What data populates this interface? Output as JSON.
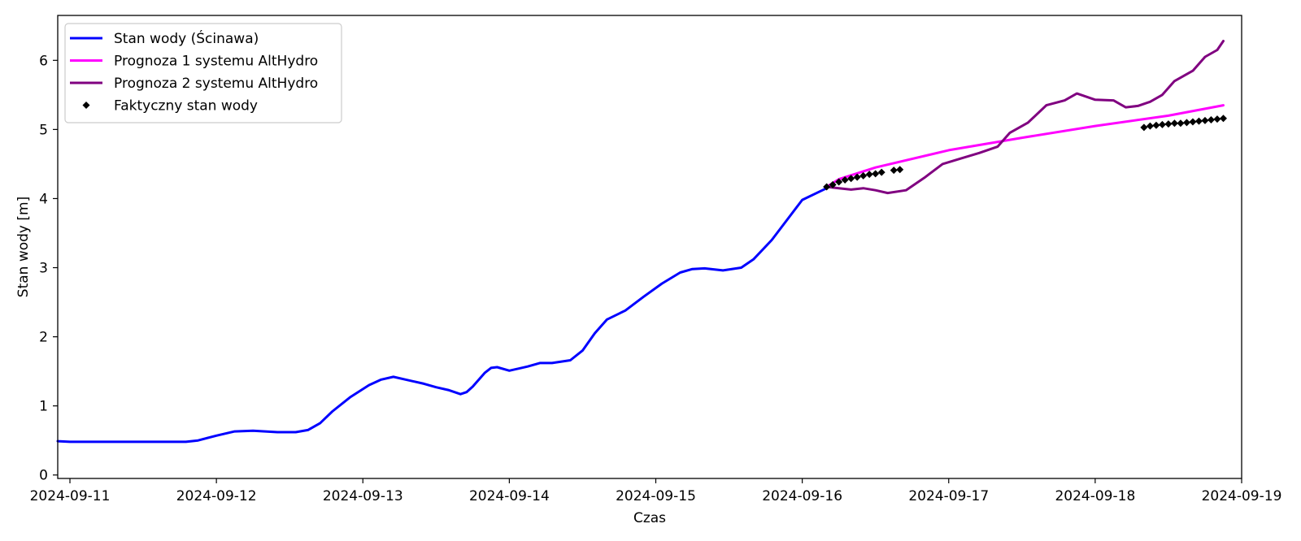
{
  "chart_data": {
    "type": "line",
    "xlabel": "Czas",
    "ylabel": "Stan wody [m]",
    "xlim": [
      "2024-09-10 22:00",
      "2024-09-19 00:00"
    ],
    "ylim": [
      -0.05,
      6.65
    ],
    "x_ticks": [
      "2024-09-11",
      "2024-09-12",
      "2024-09-13",
      "2024-09-14",
      "2024-09-15",
      "2024-09-16",
      "2024-09-17",
      "2024-09-18",
      "2024-09-19"
    ],
    "y_ticks": [
      "0",
      "1",
      "2",
      "3",
      "4",
      "5",
      "6"
    ],
    "grid": false,
    "legend_position": "top-left",
    "series": [
      {
        "name": "Stan wody (Ścinawa)",
        "color": "#0000ff",
        "style": "line",
        "points": [
          [
            "2024-09-10 22:00",
            0.49
          ],
          [
            "2024-09-11 00:00",
            0.48
          ],
          [
            "2024-09-11 03:00",
            0.48
          ],
          [
            "2024-09-11 12:00",
            0.48
          ],
          [
            "2024-09-11 19:00",
            0.48
          ],
          [
            "2024-09-11 21:00",
            0.5
          ],
          [
            "2024-09-12 00:00",
            0.57
          ],
          [
            "2024-09-12 03:00",
            0.63
          ],
          [
            "2024-09-12 06:00",
            0.64
          ],
          [
            "2024-09-12 10:00",
            0.62
          ],
          [
            "2024-09-12 13:00",
            0.62
          ],
          [
            "2024-09-12 15:00",
            0.65
          ],
          [
            "2024-09-12 17:00",
            0.75
          ],
          [
            "2024-09-12 19:00",
            0.92
          ],
          [
            "2024-09-12 22:00",
            1.13
          ],
          [
            "2024-09-13 01:00",
            1.3
          ],
          [
            "2024-09-13 03:00",
            1.38
          ],
          [
            "2024-09-13 05:00",
            1.42
          ],
          [
            "2024-09-13 07:00",
            1.38
          ],
          [
            "2024-09-13 10:00",
            1.32
          ],
          [
            "2024-09-13 12:00",
            1.27
          ],
          [
            "2024-09-13 14:00",
            1.23
          ],
          [
            "2024-09-13 16:00",
            1.17
          ],
          [
            "2024-09-13 17:00",
            1.2
          ],
          [
            "2024-09-13 18:00",
            1.28
          ],
          [
            "2024-09-13 20:00",
            1.48
          ],
          [
            "2024-09-13 21:00",
            1.55
          ],
          [
            "2024-09-13 22:00",
            1.56
          ],
          [
            "2024-09-14 00:00",
            1.51
          ],
          [
            "2024-09-14 03:00",
            1.57
          ],
          [
            "2024-09-14 05:00",
            1.62
          ],
          [
            "2024-09-14 07:00",
            1.62
          ],
          [
            "2024-09-14 10:00",
            1.66
          ],
          [
            "2024-09-14 12:00",
            1.8
          ],
          [
            "2024-09-14 14:00",
            2.05
          ],
          [
            "2024-09-14 16:00",
            2.25
          ],
          [
            "2024-09-14 19:00",
            2.38
          ],
          [
            "2024-09-14 22:00",
            2.58
          ],
          [
            "2024-09-15 01:00",
            2.77
          ],
          [
            "2024-09-15 04:00",
            2.93
          ],
          [
            "2024-09-15 06:00",
            2.98
          ],
          [
            "2024-09-15 08:00",
            2.99
          ],
          [
            "2024-09-15 11:00",
            2.96
          ],
          [
            "2024-09-15 14:00",
            3.0
          ],
          [
            "2024-09-15 16:00",
            3.12
          ],
          [
            "2024-09-15 19:00",
            3.4
          ],
          [
            "2024-09-16 00:00",
            3.98
          ],
          [
            "2024-09-16 04:00",
            4.15
          ]
        ]
      },
      {
        "name": "Prognoza 1 systemu AltHydro",
        "color": "#ff00ff",
        "style": "line",
        "points": [
          [
            "2024-09-16 04:00",
            4.17
          ],
          [
            "2024-09-16 06:00",
            4.28
          ],
          [
            "2024-09-16 12:00",
            4.45
          ],
          [
            "2024-09-17 00:00",
            4.7
          ],
          [
            "2024-09-17 12:00",
            4.88
          ],
          [
            "2024-09-18 00:00",
            5.05
          ],
          [
            "2024-09-18 12:00",
            5.2
          ],
          [
            "2024-09-18 21:00",
            5.35
          ]
        ]
      },
      {
        "name": "Prognoza 2 systemu AltHydro",
        "color": "#800080",
        "style": "line",
        "points": [
          [
            "2024-09-16 04:00",
            4.17
          ],
          [
            "2024-09-16 06:00",
            4.15
          ],
          [
            "2024-09-16 08:00",
            4.13
          ],
          [
            "2024-09-16 10:00",
            4.15
          ],
          [
            "2024-09-16 12:00",
            4.12
          ],
          [
            "2024-09-16 14:00",
            4.08
          ],
          [
            "2024-09-16 17:00",
            4.12
          ],
          [
            "2024-09-16 20:00",
            4.3
          ],
          [
            "2024-09-16 23:00",
            4.5
          ],
          [
            "2024-09-17 02:00",
            4.58
          ],
          [
            "2024-09-17 05:00",
            4.66
          ],
          [
            "2024-09-17 08:00",
            4.75
          ],
          [
            "2024-09-17 10:00",
            4.95
          ],
          [
            "2024-09-17 13:00",
            5.1
          ],
          [
            "2024-09-17 16:00",
            5.35
          ],
          [
            "2024-09-17 19:00",
            5.42
          ],
          [
            "2024-09-17 21:00",
            5.52
          ],
          [
            "2024-09-18 00:00",
            5.43
          ],
          [
            "2024-09-18 03:00",
            5.42
          ],
          [
            "2024-09-18 05:00",
            5.32
          ],
          [
            "2024-09-18 07:00",
            5.34
          ],
          [
            "2024-09-18 09:00",
            5.4
          ],
          [
            "2024-09-18 11:00",
            5.5
          ],
          [
            "2024-09-18 13:00",
            5.7
          ],
          [
            "2024-09-18 16:00",
            5.85
          ],
          [
            "2024-09-18 18:00",
            6.05
          ],
          [
            "2024-09-18 20:00",
            6.15
          ],
          [
            "2024-09-18 21:00",
            6.28
          ]
        ]
      },
      {
        "name": "Faktyczny stan wody",
        "color": "#000000",
        "style": "markers",
        "points": [
          [
            "2024-09-16 04:00",
            4.17
          ],
          [
            "2024-09-16 05:00",
            4.2
          ],
          [
            "2024-09-16 06:00",
            4.24
          ],
          [
            "2024-09-16 07:00",
            4.27
          ],
          [
            "2024-09-16 08:00",
            4.29
          ],
          [
            "2024-09-16 09:00",
            4.31
          ],
          [
            "2024-09-16 10:00",
            4.33
          ],
          [
            "2024-09-16 11:00",
            4.35
          ],
          [
            "2024-09-16 12:00",
            4.36
          ],
          [
            "2024-09-16 13:00",
            4.38
          ],
          [
            "2024-09-16 15:00",
            4.41
          ],
          [
            "2024-09-16 16:00",
            4.42
          ],
          [
            "2024-09-18 08:00",
            5.03
          ],
          [
            "2024-09-18 09:00",
            5.05
          ],
          [
            "2024-09-18 10:00",
            5.06
          ],
          [
            "2024-09-18 11:00",
            5.07
          ],
          [
            "2024-09-18 12:00",
            5.08
          ],
          [
            "2024-09-18 13:00",
            5.09
          ],
          [
            "2024-09-18 14:00",
            5.09
          ],
          [
            "2024-09-18 15:00",
            5.1
          ],
          [
            "2024-09-18 16:00",
            5.11
          ],
          [
            "2024-09-18 17:00",
            5.12
          ],
          [
            "2024-09-18 18:00",
            5.13
          ],
          [
            "2024-09-18 19:00",
            5.14
          ],
          [
            "2024-09-18 20:00",
            5.15
          ],
          [
            "2024-09-18 21:00",
            5.16
          ]
        ]
      }
    ]
  }
}
